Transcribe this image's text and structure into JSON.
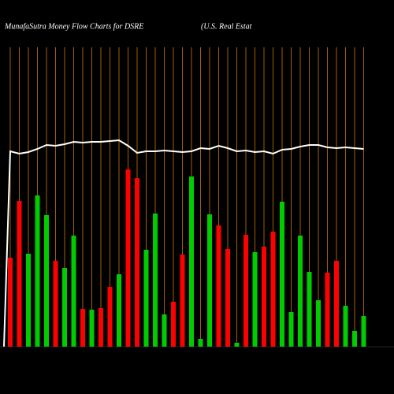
{
  "chart_data": {
    "type": "bar",
    "title": "MunafaSutra  Money Flow  Charts for DSRE",
    "subtitle": "(U.S. Real Estat",
    "categories": [
      null,
      null,
      null,
      null,
      null,
      null,
      null,
      null,
      null,
      null,
      null,
      null,
      null,
      null,
      null,
      null,
      null,
      null,
      null,
      null,
      null,
      null,
      null,
      null,
      null,
      null,
      null,
      null,
      null,
      null,
      null,
      null,
      null,
      null,
      null,
      null,
      null,
      null,
      null,
      null
    ],
    "values": [
      113,
      185,
      118,
      192,
      167,
      109,
      100,
      141,
      48,
      47,
      49,
      76,
      92,
      225,
      214,
      123,
      169,
      41,
      57,
      117,
      216,
      10,
      168,
      154,
      124,
      5,
      142,
      120,
      127,
      146,
      184,
      44,
      141,
      95,
      59,
      94,
      109,
      52,
      20,
      39
    ],
    "bar_colors": [
      "#ff0000",
      "#ff0000",
      "#00cc00",
      "#00cc00",
      "#00cc00",
      "#ff0000",
      "#00cc00",
      "#00cc00",
      "#ff0000",
      "#00cc00",
      "#ff0000",
      "#ff0000",
      "#00cc00",
      "#ff0000",
      "#ff0000",
      "#00cc00",
      "#00cc00",
      "#00cc00",
      "#ff0000",
      "#ff0000",
      "#00cc00",
      "#00cc00",
      "#00cc00",
      "#ff0000",
      "#ff0000",
      "#00cc00",
      "#ff0000",
      "#00cc00",
      "#ff0000",
      "#ff0000",
      "#00cc00",
      "#00cc00",
      "#00cc00",
      "#00cc00",
      "#00cc00",
      "#ff0000",
      "#ff0000",
      "#00cc00",
      "#00cc00",
      "#00cc00"
    ],
    "line_values": [
      248,
      245,
      247,
      251,
      256,
      255,
      257,
      260,
      259,
      260,
      260,
      261,
      262,
      255,
      246,
      248,
      248,
      249,
      248,
      247,
      248,
      252,
      251,
      255,
      252,
      248,
      249,
      247,
      248,
      245,
      250,
      251,
      254,
      256,
      256,
      253,
      252,
      253,
      252,
      251
    ],
    "line_color": "#ffffff",
    "grid_color": "#cc7700",
    "ylim": [
      0,
      380
    ]
  }
}
